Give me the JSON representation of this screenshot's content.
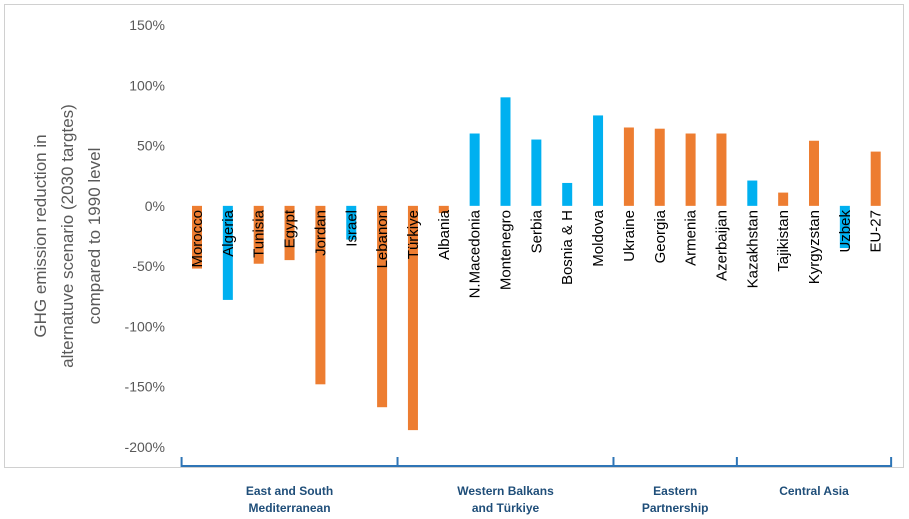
{
  "chart_data": {
    "type": "bar",
    "ylabel_lines": [
      "GHG emission reduction in",
      "alternatuve scenario (2030 targtes)",
      "compared to 1990 level"
    ],
    "ytick_labels": [
      "150%",
      "100%",
      "50%",
      "0%",
      "-50%",
      "-100%",
      "-150%",
      "-200%"
    ],
    "ylim": [
      -200,
      150
    ],
    "grid": false,
    "colors": {
      "orange": "#ED7D31",
      "blue": "#00B0F0",
      "group_axis": "#2E75B6",
      "group_text": "#1F4E79"
    },
    "categories": [
      "Morocco",
      "Algeria",
      "Tunisia",
      "Egypt",
      "Jordan",
      "Israel",
      "Lebanon",
      "Türkiye",
      "Albania",
      "N.Macedonia",
      "Montenegro",
      "Serbia",
      "Bosnia & H",
      "Moldova",
      "Ukraine",
      "Georgia",
      "Armenia",
      "Azerbaijan",
      "Kazakhstan",
      "Tajikistan",
      "Kyrgyzstan",
      "Uzbek",
      "EU-27"
    ],
    "values": [
      -52,
      -78,
      -48,
      -45,
      -148,
      -28,
      -167,
      -186,
      -6,
      60,
      90,
      55,
      19,
      75,
      65,
      64,
      60,
      60,
      21,
      11,
      54,
      -35,
      45
    ],
    "bar_colors": [
      "orange",
      "blue",
      "orange",
      "orange",
      "orange",
      "blue",
      "orange",
      "orange",
      "orange",
      "blue",
      "blue",
      "blue",
      "blue",
      "blue",
      "orange",
      "orange",
      "orange",
      "orange",
      "blue",
      "orange",
      "orange",
      "blue",
      "orange"
    ],
    "groups": [
      {
        "lines": [
          "East and South",
          "Mediterranean"
        ],
        "start": 0,
        "end": 6
      },
      {
        "lines": [
          "Western Balkans",
          "and Türkiye"
        ],
        "start": 7,
        "end": 13
      },
      {
        "lines": [
          "Eastern",
          "Partnership"
        ],
        "start": 14,
        "end": 17
      },
      {
        "lines": [
          "Central Asia"
        ],
        "start": 18,
        "end": 22
      }
    ]
  }
}
